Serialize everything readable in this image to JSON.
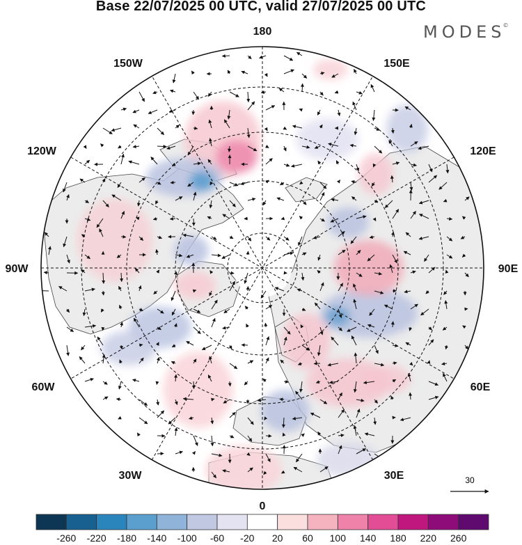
{
  "header": {
    "title": "Base 22/07/2025 00 UTC, valid 27/07/2025 00 UTC",
    "brand": "MODES",
    "brand_mark": "©"
  },
  "map": {
    "projection": "north polar stereographic",
    "longitude_labels": {
      "top": "180",
      "top_left": "150W",
      "top_right": "150E",
      "upper_left": "120W",
      "upper_right": "120E",
      "left": "90W",
      "right": "90E",
      "lower_left": "60W",
      "lower_right": "60E",
      "bottom_left": "30W",
      "bottom_right": "30E",
      "bottom": "0"
    },
    "vector_reference": {
      "value": "30"
    }
  },
  "colorbar": {
    "ticks": [
      "-260",
      "-220",
      "-180",
      "-140",
      "-100",
      "-60",
      "-20",
      "20",
      "60",
      "100",
      "140",
      "180",
      "220",
      "260"
    ],
    "colors": [
      "#0d3655",
      "#17608f",
      "#2b85bd",
      "#5b9fcf",
      "#90b3d9",
      "#c0c8e2",
      "#e4e3f1",
      "#ffffff",
      "#fbdede",
      "#f5b3c0",
      "#ef82a8",
      "#e24d95",
      "#c0177f",
      "#8e0c7a",
      "#5e0a6e"
    ]
  }
}
